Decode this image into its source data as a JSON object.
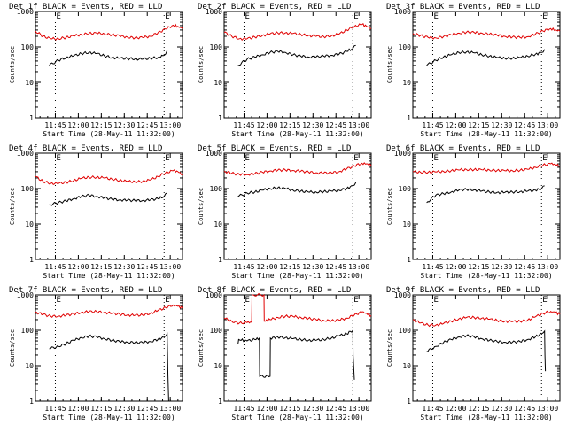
{
  "figure": {
    "x_tick_labels": [
      "11:45",
      "12:00",
      "12:15",
      "12:30",
      "12:45",
      "13:00"
    ],
    "y_tick_labels": [
      "1",
      "10",
      "100",
      "1000"
    ],
    "ylabel": "Counts/sec",
    "xlabel": "Start Time (28-May-11 11:32:00)",
    "marker_labels": [
      "E",
      "E"
    ],
    "colors": {
      "events": "#000000",
      "lld": "#e00000",
      "frame": "#000000"
    }
  },
  "chart_data": [
    {
      "type": "line",
      "title": "Det 1f BLACK = Events, RED = LLD",
      "xlabel": "Start Time (28-May-11 11:32:00)",
      "ylabel": "Counts/sec",
      "x_unit": "minutes after 11:32",
      "xlim": [
        0,
        96
      ],
      "ylim": [
        1,
        1000
      ],
      "yscale": "log",
      "vlines": [
        13,
        84
      ],
      "series": [
        {
          "name": "Events",
          "x": [
            9,
            15,
            20,
            25,
            30,
            35,
            40,
            45,
            50,
            55,
            60,
            65,
            70,
            75,
            80,
            84,
            86
          ],
          "y": [
            30,
            42,
            50,
            56,
            65,
            70,
            65,
            56,
            50,
            48,
            47,
            46,
            45,
            48,
            50,
            58,
            80
          ]
        },
        {
          "name": "LLD",
          "x": [
            0,
            5,
            10,
            15,
            20,
            25,
            30,
            35,
            40,
            45,
            50,
            55,
            60,
            65,
            70,
            75,
            80,
            85,
            90,
            93,
            96
          ],
          "y": [
            280,
            200,
            170,
            170,
            185,
            205,
            225,
            240,
            245,
            235,
            220,
            205,
            190,
            180,
            185,
            200,
            250,
            320,
            410,
            380,
            330
          ]
        }
      ]
    },
    {
      "type": "line",
      "title": "Det 2f BLACK = Events, RED = LLD",
      "xlabel": "Start Time (28-May-11 11:32:00)",
      "ylabel": "Counts/sec",
      "x_unit": "minutes after 11:32",
      "xlim": [
        0,
        96
      ],
      "ylim": [
        1,
        1000
      ],
      "yscale": "log",
      "vlines": [
        13,
        84
      ],
      "series": [
        {
          "name": "Events",
          "x": [
            9,
            15,
            20,
            25,
            30,
            35,
            40,
            45,
            50,
            55,
            60,
            65,
            70,
            75,
            80,
            84,
            86
          ],
          "y": [
            30,
            45,
            52,
            60,
            70,
            75,
            70,
            60,
            55,
            52,
            52,
            55,
            58,
            62,
            75,
            90,
            110
          ]
        },
        {
          "name": "LLD",
          "x": [
            0,
            5,
            10,
            15,
            20,
            25,
            30,
            35,
            40,
            45,
            50,
            55,
            60,
            65,
            70,
            75,
            80,
            85,
            90,
            93,
            96
          ],
          "y": [
            260,
            200,
            170,
            170,
            190,
            210,
            235,
            250,
            250,
            240,
            225,
            210,
            200,
            195,
            205,
            230,
            300,
            380,
            430,
            380,
            330
          ]
        }
      ]
    },
    {
      "type": "line",
      "title": "Det 3f BLACK = Events, RED = LLD",
      "xlabel": "Start Time (28-May-11 11:32:00)",
      "ylabel": "Counts/sec",
      "x_unit": "minutes after 11:32",
      "xlim": [
        0,
        96
      ],
      "ylim": [
        1,
        1000
      ],
      "yscale": "log",
      "vlines": [
        13,
        84
      ],
      "series": [
        {
          "name": "Events",
          "x": [
            9,
            15,
            20,
            25,
            30,
            35,
            40,
            45,
            50,
            55,
            60,
            65,
            70,
            75,
            80,
            84,
            86
          ],
          "y": [
            30,
            42,
            52,
            60,
            70,
            72,
            68,
            60,
            55,
            50,
            48,
            48,
            50,
            55,
            62,
            70,
            85
          ]
        },
        {
          "name": "LLD",
          "x": [
            0,
            5,
            10,
            15,
            20,
            25,
            30,
            35,
            40,
            45,
            50,
            55,
            60,
            65,
            70,
            75,
            80,
            85,
            90,
            93,
            96
          ],
          "y": [
            240,
            210,
            185,
            180,
            195,
            220,
            245,
            260,
            255,
            245,
            230,
            215,
            200,
            190,
            185,
            195,
            230,
            280,
            330,
            300,
            280
          ]
        }
      ]
    },
    {
      "type": "line",
      "title": "Det 4f BLACK = Events, RED = LLD",
      "xlabel": "Start Time (28-May-11 11:32:00)",
      "ylabel": "Counts/sec",
      "x_unit": "minutes after 11:32",
      "xlim": [
        0,
        96
      ],
      "ylim": [
        1,
        1000
      ],
      "yscale": "log",
      "vlines": [
        13,
        84
      ],
      "series": [
        {
          "name": "Events",
          "x": [
            9,
            15,
            20,
            25,
            30,
            35,
            40,
            45,
            50,
            55,
            60,
            65,
            70,
            75,
            80,
            84,
            86
          ],
          "y": [
            35,
            40,
            45,
            52,
            60,
            65,
            60,
            55,
            50,
            48,
            47,
            46,
            46,
            48,
            52,
            60,
            75
          ]
        },
        {
          "name": "LLD",
          "x": [
            0,
            5,
            10,
            15,
            20,
            25,
            30,
            35,
            40,
            45,
            50,
            55,
            60,
            65,
            70,
            75,
            80,
            85,
            90,
            93,
            96
          ],
          "y": [
            220,
            160,
            140,
            140,
            150,
            170,
            195,
            210,
            210,
            200,
            185,
            170,
            160,
            155,
            160,
            175,
            220,
            280,
            320,
            300,
            250
          ]
        }
      ]
    },
    {
      "type": "line",
      "title": "Det 5f BLACK = Events, RED = LLD",
      "xlabel": "Start Time (28-May-11 11:32:00)",
      "ylabel": "Counts/sec",
      "x_unit": "minutes after 11:32",
      "xlim": [
        0,
        96
      ],
      "ylim": [
        1,
        1000
      ],
      "yscale": "log",
      "vlines": [
        13,
        84
      ],
      "series": [
        {
          "name": "Events",
          "x": [
            9,
            15,
            20,
            25,
            30,
            35,
            40,
            45,
            50,
            55,
            60,
            65,
            70,
            75,
            80,
            84,
            86
          ],
          "y": [
            60,
            75,
            80,
            90,
            100,
            105,
            100,
            90,
            85,
            80,
            80,
            82,
            85,
            90,
            100,
            120,
            150
          ]
        },
        {
          "name": "LLD",
          "x": [
            0,
            5,
            10,
            15,
            20,
            25,
            30,
            35,
            40,
            45,
            50,
            55,
            60,
            65,
            70,
            75,
            80,
            85,
            90,
            93,
            96
          ],
          "y": [
            310,
            270,
            250,
            250,
            265,
            290,
            315,
            330,
            335,
            325,
            310,
            295,
            280,
            275,
            280,
            300,
            360,
            440,
            520,
            500,
            450
          ]
        }
      ]
    },
    {
      "type": "line",
      "title": "Det 6f BLACK = Events, RED = LLD",
      "xlabel": "Start Time (28-May-11 11:32:00)",
      "ylabel": "Counts/sec",
      "x_unit": "minutes after 11:32",
      "xlim": [
        0,
        96
      ],
      "ylim": [
        1,
        1000
      ],
      "yscale": "log",
      "vlines": [
        13,
        84
      ],
      "series": [
        {
          "name": "Events",
          "x": [
            9,
            15,
            20,
            25,
            30,
            35,
            40,
            45,
            50,
            55,
            60,
            65,
            70,
            75,
            80,
            84,
            86
          ],
          "y": [
            40,
            65,
            72,
            80,
            90,
            95,
            92,
            85,
            80,
            78,
            78,
            80,
            82,
            85,
            90,
            100,
            120
          ]
        },
        {
          "name": "LLD",
          "x": [
            0,
            5,
            10,
            15,
            20,
            25,
            30,
            35,
            40,
            45,
            50,
            55,
            60,
            65,
            70,
            75,
            80,
            85,
            90,
            93,
            96
          ],
          "y": [
            300,
            290,
            290,
            295,
            305,
            320,
            335,
            345,
            345,
            340,
            335,
            325,
            320,
            320,
            330,
            350,
            400,
            460,
            500,
            480,
            440
          ]
        }
      ]
    },
    {
      "type": "line",
      "title": "Det 7f BLACK = Events, RED = LLD",
      "xlabel": "Start Time (28-May-11 11:32:00)",
      "ylabel": "Counts/sec",
      "x_unit": "minutes after 11:32",
      "xlim": [
        0,
        96
      ],
      "ylim": [
        1,
        1000
      ],
      "yscale": "log",
      "vlines": [
        13,
        84
      ],
      "series": [
        {
          "name": "Events",
          "x": [
            9,
            15,
            20,
            25,
            30,
            35,
            40,
            45,
            50,
            55,
            60,
            65,
            70,
            75,
            80,
            84,
            86,
            86.1,
            86.5,
            87
          ],
          "y": [
            30,
            35,
            42,
            52,
            62,
            68,
            65,
            58,
            52,
            48,
            46,
            45,
            45,
            48,
            55,
            65,
            80,
            40,
            5,
            1
          ]
        },
        {
          "name": "LLD",
          "x": [
            0,
            5,
            10,
            15,
            20,
            25,
            30,
            35,
            40,
            45,
            50,
            55,
            60,
            65,
            70,
            75,
            80,
            85,
            90,
            93,
            96
          ],
          "y": [
            330,
            280,
            250,
            250,
            265,
            290,
            320,
            335,
            335,
            320,
            300,
            285,
            270,
            265,
            270,
            300,
            360,
            440,
            520,
            480,
            420
          ]
        }
      ]
    },
    {
      "type": "line",
      "title": "Det 8f BLACK = Events, RED = LLD",
      "xlabel": "Start Time (28-May-11 11:32:00)",
      "ylabel": "Counts/sec",
      "x_unit": "minutes after 11:32",
      "xlim": [
        0,
        96
      ],
      "ylim": [
        1,
        1000
      ],
      "yscale": "log",
      "vlines": [
        13,
        84
      ],
      "series": [
        {
          "name": "Events",
          "x": [
            9,
            9.5,
            15,
            20,
            23,
            23.2,
            30,
            30.2,
            35,
            40,
            45,
            50,
            55,
            60,
            65,
            70,
            75,
            80,
            84,
            84.2,
            85
          ],
          "y": [
            40,
            55,
            50,
            55,
            60,
            5,
            5,
            60,
            65,
            62,
            58,
            55,
            52,
            52,
            55,
            60,
            70,
            80,
            100,
            20,
            4
          ]
        },
        {
          "name": "LLD",
          "x": [
            0,
            5,
            10,
            15,
            18,
            18.2,
            19,
            26,
            26.2,
            30,
            35,
            40,
            45,
            50,
            55,
            60,
            65,
            70,
            75,
            80,
            85,
            90,
            93,
            96
          ],
          "y": [
            220,
            180,
            160,
            165,
            170,
            1000,
            1000,
            1000,
            180,
            200,
            230,
            250,
            245,
            230,
            215,
            200,
            190,
            185,
            195,
            220,
            270,
            330,
            300,
            260
          ]
        }
      ]
    },
    {
      "type": "line",
      "title": "Det 9f BLACK = Events, RED = LLD",
      "xlabel": "Start Time (28-May-11 11:32:00)",
      "ylabel": "Counts/sec",
      "x_unit": "minutes after 11:32",
      "xlim": [
        0,
        96
      ],
      "ylim": [
        1,
        1000
      ],
      "yscale": "log",
      "vlines": [
        13,
        84
      ],
      "series": [
        {
          "name": "Events",
          "x": [
            9,
            15,
            20,
            25,
            30,
            35,
            40,
            45,
            50,
            55,
            60,
            65,
            70,
            75,
            80,
            84,
            86,
            86.2,
            86.5
          ],
          "y": [
            25,
            35,
            45,
            55,
            65,
            70,
            65,
            58,
            52,
            48,
            46,
            46,
            48,
            55,
            65,
            80,
            95,
            20,
            7
          ]
        },
        {
          "name": "LLD",
          "x": [
            0,
            5,
            10,
            15,
            20,
            25,
            30,
            35,
            40,
            45,
            50,
            55,
            60,
            65,
            70,
            75,
            80,
            85,
            90,
            93,
            96
          ],
          "y": [
            200,
            160,
            140,
            140,
            155,
            180,
            210,
            230,
            230,
            220,
            205,
            190,
            180,
            175,
            180,
            195,
            240,
            300,
            340,
            320,
            280
          ]
        }
      ]
    }
  ]
}
